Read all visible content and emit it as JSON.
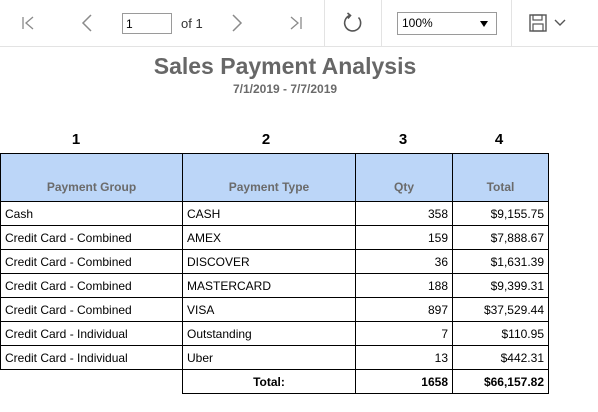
{
  "toolbar": {
    "page_value": "1",
    "page_of": "of 1",
    "zoom": "100%"
  },
  "report": {
    "title": "Sales Payment Analysis",
    "subtitle": "7/1/2019 - 7/7/2019",
    "column_numbers": [
      "1",
      "2",
      "3",
      "4"
    ],
    "headers": {
      "group": "Payment Group",
      "type": "Payment Type",
      "qty": "Qty",
      "total": "Total"
    },
    "rows": [
      {
        "group": "Cash",
        "type": "CASH",
        "qty": "358",
        "total": "$9,155.75"
      },
      {
        "group": "Credit Card - Combined",
        "type": "AMEX",
        "qty": "159",
        "total": "$7,888.67"
      },
      {
        "group": "Credit Card - Combined",
        "type": "DISCOVER",
        "qty": "36",
        "total": "$1,631.39"
      },
      {
        "group": "Credit Card - Combined",
        "type": "MASTERCARD",
        "qty": "188",
        "total": "$9,399.31"
      },
      {
        "group": "Credit Card - Combined",
        "type": "VISA",
        "qty": "897",
        "total": "$37,529.44"
      },
      {
        "group": "Credit Card - Individual",
        "type": "Outstanding",
        "qty": "7",
        "total": "$110.95"
      },
      {
        "group": "Credit Card - Individual",
        "type": "Uber",
        "qty": "13",
        "total": "$442.31"
      }
    ],
    "total_row": {
      "label": "Total:",
      "qty": "1658",
      "total": "$66,157.82"
    }
  }
}
